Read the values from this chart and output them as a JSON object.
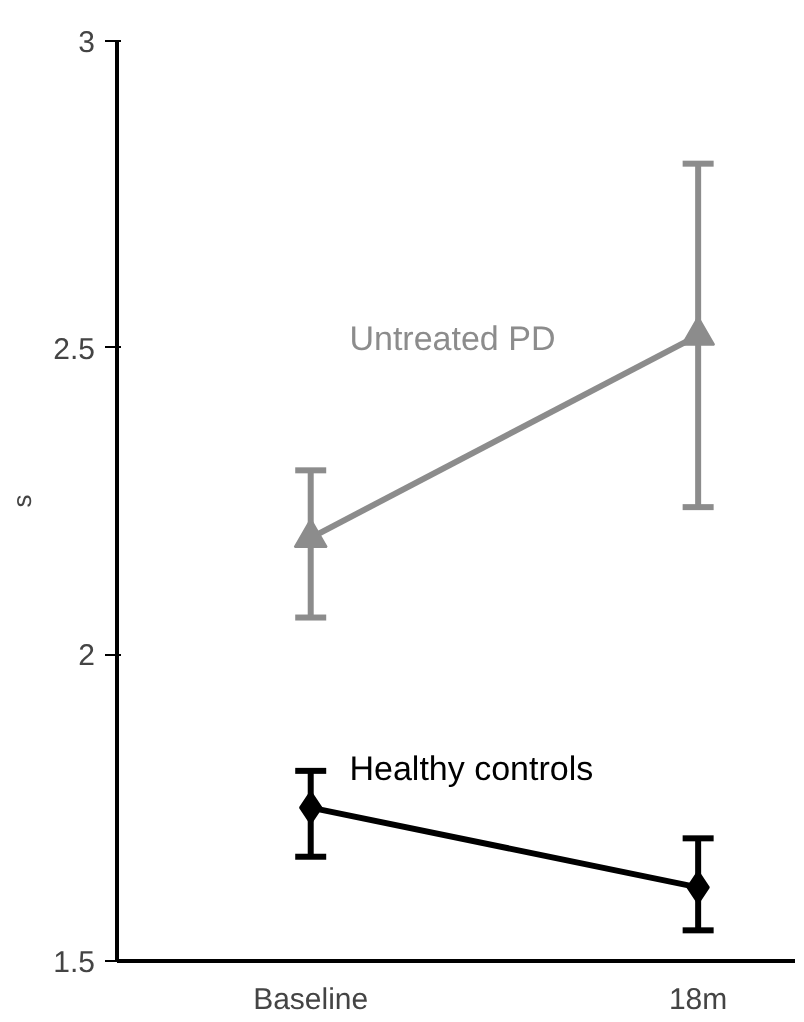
{
  "chart_data": {
    "type": "line",
    "ylabel": "s",
    "categories": [
      "Baseline",
      "18m"
    ],
    "series": [
      {
        "name": "Untreated PD",
        "color": "#8c8c8c",
        "marker": "triangle",
        "values": [
          2.19,
          2.52
        ],
        "errors": [
          [
            2.06,
            2.3
          ],
          [
            2.24,
            2.8
          ]
        ]
      },
      {
        "name": "Healthy controls",
        "color": "#000000",
        "marker": "diamond",
        "values": [
          1.75,
          1.62
        ],
        "errors": [
          [
            1.67,
            1.81
          ],
          [
            1.55,
            1.7
          ]
        ]
      }
    ],
    "ylim": [
      1.5,
      3
    ],
    "yticks": [
      1.5,
      2,
      2.5,
      3
    ]
  }
}
